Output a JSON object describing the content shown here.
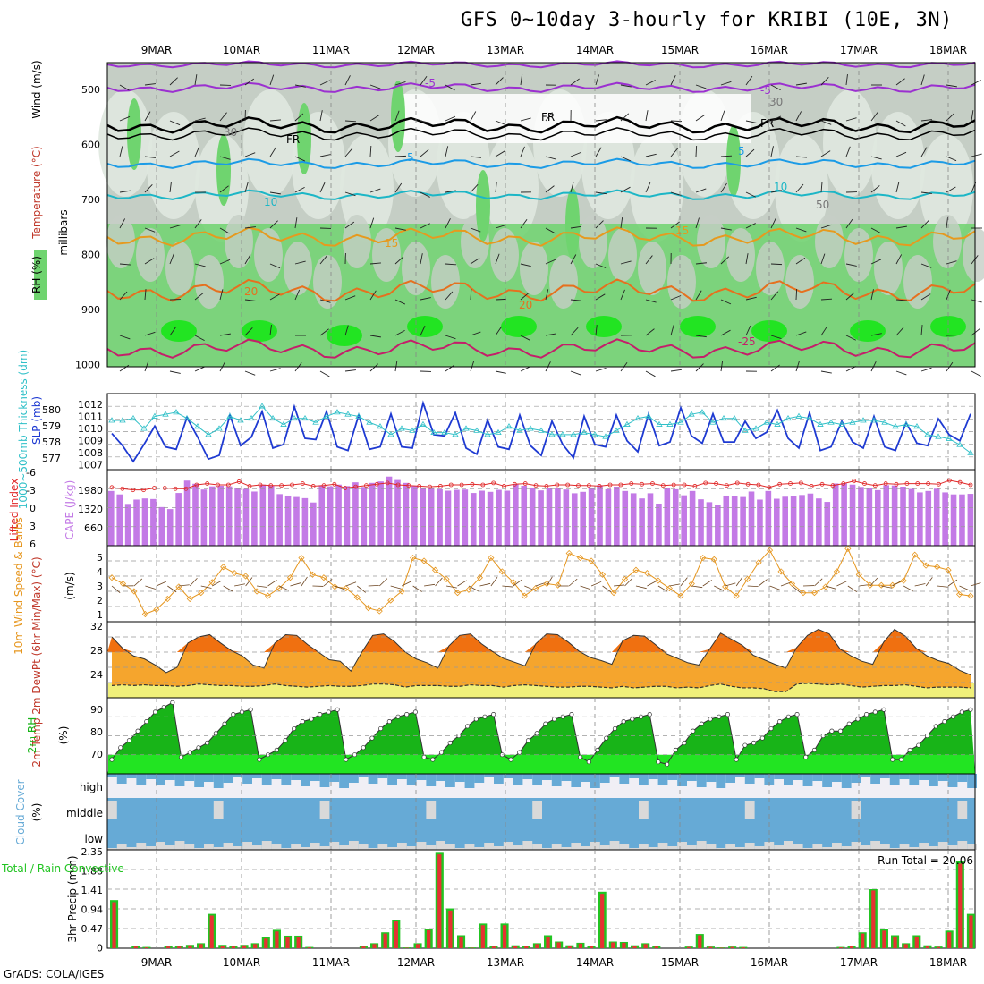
{
  "title": "GFS 0~10day 3-hourly for KRIBI (10E, 3N)",
  "footer": "GrADS: COLA/IGES",
  "run_total": "Run Total = 20.06",
  "dates": [
    "9MAR",
    "10MAR",
    "11MAR",
    "12MAR",
    "13MAR",
    "14MAR",
    "15MAR",
    "16MAR",
    "17MAR",
    "18MAR"
  ],
  "colors": {
    "rh_light": "#dfe8df",
    "rh_mid": "#c5cec5",
    "rh_green": "#6fd46f",
    "rh_bright": "#22e422",
    "temp_m5": "#9b30d0",
    "temp_fr": "#000000",
    "temp_5": "#1b9be6",
    "temp_10": "#1cb6c6",
    "temp_15": "#e69a1e",
    "temp_20": "#e6701e",
    "temp_25": "#c41e6a",
    "slp": "#1e3ad2",
    "thickness": "#30c0c8",
    "cape": "#c37ae6",
    "lifted": "#e02828",
    "wind10": "#e6961e",
    "temp_fill": "#f5a52d",
    "temp_dark": "#f07010",
    "dewpt_fill": "#f0f07a",
    "rh_fill": "#18b418",
    "rh_base": "#22e422",
    "cloud": "#66aad6",
    "cloud_bg": "#d9d9d9",
    "precip_total": "#22c422",
    "precip_conv": "#e63232"
  },
  "panels": {
    "upper_air": {
      "ylabel": "millibars",
      "rh_label": "RH (%)",
      "temperature_label": "Temperature (°C)",
      "wind_label": "Wind (m/s)",
      "yticks": [
        "500",
        "600",
        "700",
        "800",
        "900",
        "1000"
      ],
      "contour_labels": [
        "-5",
        "-5",
        "FR",
        "FR",
        "FR",
        "5",
        "5",
        "10",
        "10",
        "15",
        "15",
        "20",
        "20",
        "-25",
        "30",
        "30",
        "50"
      ]
    },
    "slp": {
      "left_label": "1000~500mb Thickness (dm)",
      "right_label": "SLP (mb)",
      "left_ticks": [
        "580",
        "579",
        "578",
        "577"
      ],
      "right_ticks": [
        "1012",
        "1011",
        "1010",
        "1009",
        "1008",
        "1007"
      ]
    },
    "cape": {
      "left_label": "Lifted Index",
      "right_label": "CAPE (J/kg)",
      "left_ticks": [
        "-6",
        "-3",
        "0",
        "3",
        "6"
      ],
      "right_ticks": [
        "1980",
        "1320",
        "660"
      ]
    },
    "wind10": {
      "label": "10m Wind Speed & Barbs",
      "units": "(m/s)",
      "yticks": [
        "5",
        "4",
        "3",
        "2",
        "1"
      ]
    },
    "temp2m": {
      "label": "2m Temp 2m DewPt (6hr Min/Max) (°C)",
      "yticks": [
        "32",
        "28",
        "24"
      ]
    },
    "rh2m": {
      "label": "2m RH",
      "units": "(%)",
      "yticks": [
        "90",
        "80",
        "70"
      ]
    },
    "cloud": {
      "label": "Cloud Cover",
      "units": "(%)",
      "levels": [
        "high",
        "middle",
        "low"
      ]
    },
    "precip": {
      "label": "3hr Precip (mm)",
      "legend": "Total / Rain Convective",
      "yticks": [
        "2.35",
        "1.88",
        "1.41",
        "0.94",
        "0.47",
        "0"
      ]
    }
  },
  "chart_data": [
    {
      "type": "line",
      "title": "1000~500mb Thickness (dm) / SLP (mb)",
      "series": [
        {
          "name": "SLP (mb)",
          "values": [
            1009.6,
            1008.6,
            1007.3,
            1008.7,
            1010.2,
            1008.5,
            1008.3,
            1010.9,
            1009.3,
            1007.5,
            1007.8,
            1011.1,
            1008.6,
            1009.3,
            1011.4,
            1008.4,
            1008.7,
            1011.8,
            1009.2,
            1009.1,
            1011.4,
            1008.5,
            1008.2,
            1011.1,
            1008.3,
            1008.5,
            1011.2,
            1008.5,
            1008.4,
            1012.1,
            1009.5,
            1009.4,
            1011.3,
            1008.4,
            1007.9,
            1010.7,
            1008.5,
            1008.3,
            1011.1,
            1008.6,
            1007.8,
            1010.6,
            1008.7,
            1007.6,
            1011.0,
            1008.7,
            1008.5,
            1011.1,
            1009.0,
            1008.1,
            1011.2,
            1008.6,
            1008.9,
            1011.7,
            1009.4,
            1008.8,
            1011.2,
            1008.9,
            1008.9,
            1010.6,
            1009.2,
            1009.7,
            1011.5,
            1009.2,
            1008.4,
            1011.3,
            1008.2,
            1008.5,
            1010.6,
            1008.9,
            1008.4,
            1011.0,
            1008.5,
            1008.2,
            1010.5,
            1008.8,
            1008.6,
            1010.8,
            1009.5,
            1009.0,
            1011.2
          ]
        },
        {
          "name": "1000~500mb Thickness (dm)",
          "values": [
            579.2,
            579.2,
            579.3,
            578.8,
            579.4,
            579.5,
            579.6,
            579.3,
            578.9,
            578.5,
            578.8,
            579.4,
            579.2,
            579.3,
            579.9,
            579.3,
            579.0,
            579.3,
            579.3,
            579.1,
            579.4,
            579.6,
            579.5,
            579.4,
            579.1,
            578.9,
            578.5,
            578.8,
            578.7,
            579.0,
            578.6,
            578.6,
            578.5,
            578.8,
            578.7,
            578.5,
            578.6,
            578.9,
            578.7,
            578.8,
            578.7,
            578.5,
            578.5,
            578.5,
            578.6,
            578.5,
            578.4,
            578.7,
            579.0,
            579.3,
            579.4,
            579.0,
            579.0,
            579.1,
            579.5,
            579.6,
            579.1,
            579.3,
            579.3,
            578.7,
            578.8,
            579.1,
            579.0,
            579.3,
            579.4,
            579.3,
            579.0,
            579.1,
            579.0,
            579.1,
            579.2,
            579.2,
            579.1,
            578.9,
            579.0,
            578.9,
            578.5,
            578.4,
            578.3,
            578.0,
            577.6
          ]
        }
      ],
      "ylim": [
        1007,
        1012.5
      ]
    },
    {
      "type": "bar",
      "title": "Lifted Index / CAPE (J/kg)",
      "series": [
        {
          "name": "CAPE (J/kg)",
          "values": [
            1900,
            1780,
            1450,
            1600,
            1640,
            1620,
            1340,
            1270,
            1830,
            2260,
            2150,
            1950,
            2060,
            2080,
            2060,
            2000,
            1970,
            1880,
            2120,
            2080,
            1790,
            1740,
            1690,
            1650,
            1500,
            2100,
            2060,
            2120,
            2070,
            2200,
            2040,
            2180,
            2230,
            2400,
            2280,
            2180,
            2070,
            2010,
            1990,
            1960,
            1910,
            1940,
            1950,
            1830,
            1910,
            1870,
            1940,
            1910,
            2140,
            2080,
            2020,
            1920,
            1990,
            2000,
            1950,
            1820,
            1870,
            2020,
            2100,
            1960,
            2050,
            1900,
            1820,
            1640,
            1820,
            1460,
            2000,
            1960,
            1750,
            1900,
            1610,
            1510,
            1410,
            1740,
            1730,
            1690,
            1880,
            1600,
            1900,
            1630,
            1700,
            1720,
            1760,
            1810,
            1640,
            1520,
            2160,
            2170,
            2120,
            2040,
            1990,
            1930,
            2100,
            2090,
            2050,
            1970,
            1850,
            1900,
            1980,
            1850,
            1780,
            1780,
            1800
          ]
        },
        {
          "name": "Lifted Index",
          "values": [
            -3.2,
            -3.0,
            -2.8,
            -2.8,
            -3.1,
            -3.1,
            -3.0,
            -3.0,
            -3.6,
            -3.8,
            -3.6,
            -3.6,
            -4.1,
            -3.4,
            -3.6,
            -3.5,
            -3.5,
            -3.6,
            -3.8,
            -3.4,
            -3.5,
            -3.7,
            -3.1,
            -3.3,
            -3.5,
            -3.7,
            -3.9,
            -3.6,
            -3.5,
            -3.4,
            -3.3,
            -3.4,
            -3.6,
            -3.6,
            -3.7,
            -3.6,
            -3.9,
            -3.4,
            -3.7,
            -3.8,
            -3.5,
            -3.4,
            -3.6,
            -3.6,
            -3.5,
            -3.5,
            -3.4,
            -3.6,
            -3.6,
            -3.8,
            -3.7,
            -3.8,
            -3.5,
            -3.6,
            -3.6,
            -3.4,
            -3.9,
            -3.8,
            -3.5,
            -3.9,
            -3.7,
            -3.6,
            -3.2,
            -3.7,
            -3.8,
            -3.9,
            -3.4,
            -3.7,
            -3.5,
            -3.8,
            -4.2,
            -3.8,
            -3.5,
            -3.8,
            -3.7,
            -3.8,
            -3.8,
            -3.8,
            -3.7,
            -4.3,
            -4.0,
            -3.6
          ]
        }
      ],
      "ylim": [
        0,
        2640
      ]
    },
    {
      "type": "line",
      "title": "10m Wind Speed & Barbs (m/s)",
      "series": [
        {
          "name": "10m Wind Speed",
          "values": [
            3.4,
            3.0,
            2.5,
            1.0,
            1.3,
            2.0,
            2.8,
            2.0,
            2.4,
            3.1,
            4.1,
            3.7,
            3.5,
            2.5,
            2.2,
            2.7,
            3.4,
            4.7,
            3.6,
            3.4,
            2.8,
            2.7,
            2.1,
            1.4,
            1.2,
            1.9,
            2.5,
            4.7,
            4.5,
            3.9,
            3.3,
            2.4,
            2.6,
            3.4,
            4.7,
            3.8,
            3.1,
            2.2,
            2.7,
            3.0,
            2.9,
            5.0,
            4.7,
            4.5,
            3.6,
            2.4,
            3.3,
            3.9,
            3.7,
            3.2,
            2.7,
            2.2,
            3.0,
            4.7,
            4.6,
            2.8,
            2.2,
            3.3,
            4.4,
            5.2,
            3.8,
            3.0,
            2.4,
            2.4,
            2.8,
            3.8,
            5.3,
            3.6,
            2.9,
            2.9,
            2.9,
            3.2,
            4.9,
            4.2,
            4.1,
            3.9,
            2.3,
            2.2
          ]
        }
      ],
      "ylim": [
        0.5,
        5.5
      ]
    },
    {
      "type": "area",
      "title": "2m Temp / 2m DewPt (°C)",
      "series": [
        {
          "name": "2m Temp",
          "values": [
            30.0,
            28.5,
            27.5,
            27.1,
            26.3,
            25.3,
            26.0,
            29.2,
            30.0,
            30.3,
            29.2,
            28.2,
            27.5,
            26.3,
            25.9,
            29.2,
            30.3,
            30.2,
            29.0,
            28.0,
            27.0,
            26.8,
            25.5,
            28.0,
            30.2,
            30.4,
            29.4,
            28.0,
            27.1,
            26.6,
            25.9,
            28.8,
            30.2,
            30.4,
            29.1,
            28.1,
            27.2,
            26.7,
            26.2,
            29.1,
            30.4,
            30.3,
            29.3,
            28.1,
            27.3,
            26.9,
            26.4,
            29.5,
            30.2,
            30.1,
            29.0,
            27.8,
            27.2,
            26.6,
            26.3,
            28.4,
            30.5,
            29.7,
            28.9,
            27.6,
            27.0,
            26.4,
            25.9,
            28.6,
            30.2,
            31.0,
            30.4,
            28.4,
            27.5,
            26.8,
            26.4,
            29.3,
            31.0,
            30.1,
            28.5,
            27.5,
            26.9,
            26.5,
            25.6,
            25.0
          ]
        },
        {
          "name": "2m DewPt",
          "values": [
            23.6,
            23.7,
            23.6,
            23.7,
            23.6,
            23.6,
            23.5,
            23.6,
            23.8,
            23.7,
            23.6,
            23.6,
            23.5,
            23.5,
            23.6,
            23.8,
            23.6,
            23.5,
            23.4,
            23.5,
            23.6,
            23.5,
            23.5,
            23.6,
            23.8,
            23.8,
            23.7,
            23.4,
            23.6,
            23.6,
            23.6,
            23.5,
            23.5,
            23.7,
            23.6,
            23.6,
            23.4,
            23.6,
            23.7,
            23.6,
            23.5,
            23.4,
            23.4,
            23.5,
            23.5,
            23.4,
            23.3,
            23.5,
            23.3,
            23.4,
            23.5,
            23.5,
            23.3,
            23.4,
            23.3,
            23.6,
            23.8,
            23.5,
            23.3,
            23.3,
            23.2,
            22.8,
            22.8,
            23.8,
            23.9,
            23.8,
            23.7,
            23.8,
            23.6,
            23.4,
            23.5,
            23.6,
            23.6,
            23.7,
            23.5,
            23.3,
            23.4,
            23.4,
            23.4,
            23.3
          ]
        }
      ],
      "ylim": [
        22,
        32
      ]
    },
    {
      "type": "area",
      "title": "2m RH (%)",
      "series": [
        {
          "name": "2m RH",
          "values": [
            68,
            73,
            76,
            80,
            84,
            88,
            90,
            92,
            69,
            71,
            73,
            75,
            79,
            83,
            87,
            88,
            89,
            68,
            70,
            72,
            76,
            81,
            84,
            85,
            87,
            88,
            89,
            68,
            70,
            73,
            77,
            81,
            84,
            86,
            87,
            88,
            69,
            68,
            71,
            75,
            78,
            82,
            85,
            86,
            87,
            70,
            68,
            71,
            76,
            79,
            83,
            85,
            86,
            87,
            69,
            67,
            72,
            77,
            81,
            84,
            85,
            86,
            87,
            67,
            66,
            72,
            75,
            80,
            83,
            85,
            86,
            87,
            68,
            74,
            75,
            77,
            81,
            84,
            86,
            87,
            69,
            72,
            78,
            80,
            80,
            83,
            85,
            87,
            88,
            89,
            68,
            68,
            72,
            74,
            78,
            82,
            84,
            86,
            88,
            89
          ]
        }
      ],
      "ylim": [
        62,
        94
      ]
    },
    {
      "type": "bar",
      "title": "3hr Precip (mm)",
      "series": [
        {
          "name": "Total",
          "values": [
            1.15,
            0,
            0.05,
            0.03,
            0,
            0.05,
            0.05,
            0.08,
            0.12,
            0.82,
            0.08,
            0.05,
            0.08,
            0.12,
            0.26,
            0.44,
            0.3,
            0.3,
            0.03,
            0,
            0,
            0,
            0,
            0.05,
            0.12,
            0.38,
            0.68,
            0.02,
            0.12,
            0.47,
            2.3,
            0.95,
            0.31,
            0.02,
            0.59,
            0.05,
            0.59,
            0.07,
            0.06,
            0.12,
            0.31,
            0.16,
            0.07,
            0.13,
            0.06,
            1.35,
            0.16,
            0.15,
            0.07,
            0.12,
            0.05,
            0,
            0,
            0.04,
            0.34,
            0.04,
            0.02,
            0.04,
            0.03,
            0,
            0,
            0,
            0,
            0,
            0,
            0,
            0,
            0.03,
            0.06,
            0.38,
            1.41,
            0.46,
            0.31,
            0.12,
            0.31,
            0.07,
            0.04,
            0.42,
            2.08,
            0.82
          ]
        },
        {
          "name": "Convective",
          "values": [
            1.1,
            0,
            0.04,
            0.02,
            0,
            0.04,
            0.04,
            0.07,
            0.1,
            0.78,
            0.06,
            0.04,
            0.07,
            0.1,
            0.23,
            0.4,
            0.26,
            0.26,
            0.02,
            0,
            0,
            0,
            0,
            0.04,
            0.1,
            0.35,
            0.64,
            0.01,
            0.1,
            0.43,
            2.24,
            0.9,
            0.28,
            0.01,
            0.55,
            0.04,
            0.55,
            0.06,
            0.05,
            0.1,
            0.27,
            0.14,
            0.06,
            0.11,
            0.05,
            1.3,
            0.14,
            0.13,
            0.06,
            0.1,
            0.04,
            0,
            0,
            0.03,
            0.31,
            0.03,
            0.01,
            0.03,
            0.02,
            0,
            0,
            0,
            0,
            0,
            0,
            0,
            0,
            0.02,
            0.05,
            0.35,
            1.38,
            0.42,
            0.28,
            0.1,
            0.28,
            0.06,
            0.03,
            0.38,
            2.02,
            0.78
          ]
        }
      ],
      "ylim": [
        0,
        2.35
      ]
    }
  ]
}
